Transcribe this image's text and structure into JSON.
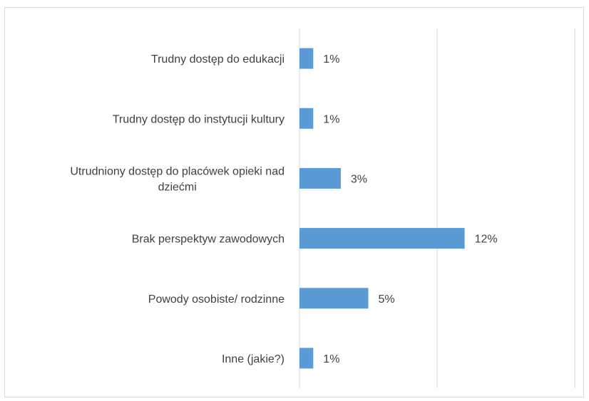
{
  "chart_data": {
    "type": "bar",
    "orientation": "horizontal",
    "categories": [
      "Trudny dostęp do edukacji",
      "Trudny dostęp do instytucji kultury",
      "Utrudniony dostęp do placówek opieki nad dziećmi",
      "Brak perspektyw zawodowych",
      "Powody osobiste/ rodzinne",
      "Inne (jakie?)"
    ],
    "category_lines": [
      [
        "Trudny dostęp do edukacji"
      ],
      [
        "Trudny dostęp do instytucji kultury"
      ],
      [
        "Utrudniony dostęp do placówek opieki nad",
        "dziećmi"
      ],
      [
        "Brak perspektyw zawodowych"
      ],
      [
        "Powody osobiste/ rodzinne"
      ],
      [
        "Inne (jakie?)"
      ]
    ],
    "values": [
      1,
      1,
      3,
      12,
      5,
      1
    ],
    "value_labels": [
      "1%",
      "1%",
      "3%",
      "12%",
      "5%",
      "1%"
    ],
    "xlim": [
      0,
      20
    ],
    "gridlines_at": [
      0,
      10,
      20
    ],
    "bar_color": "#5b9bd5",
    "grid": true,
    "legend": "none"
  }
}
